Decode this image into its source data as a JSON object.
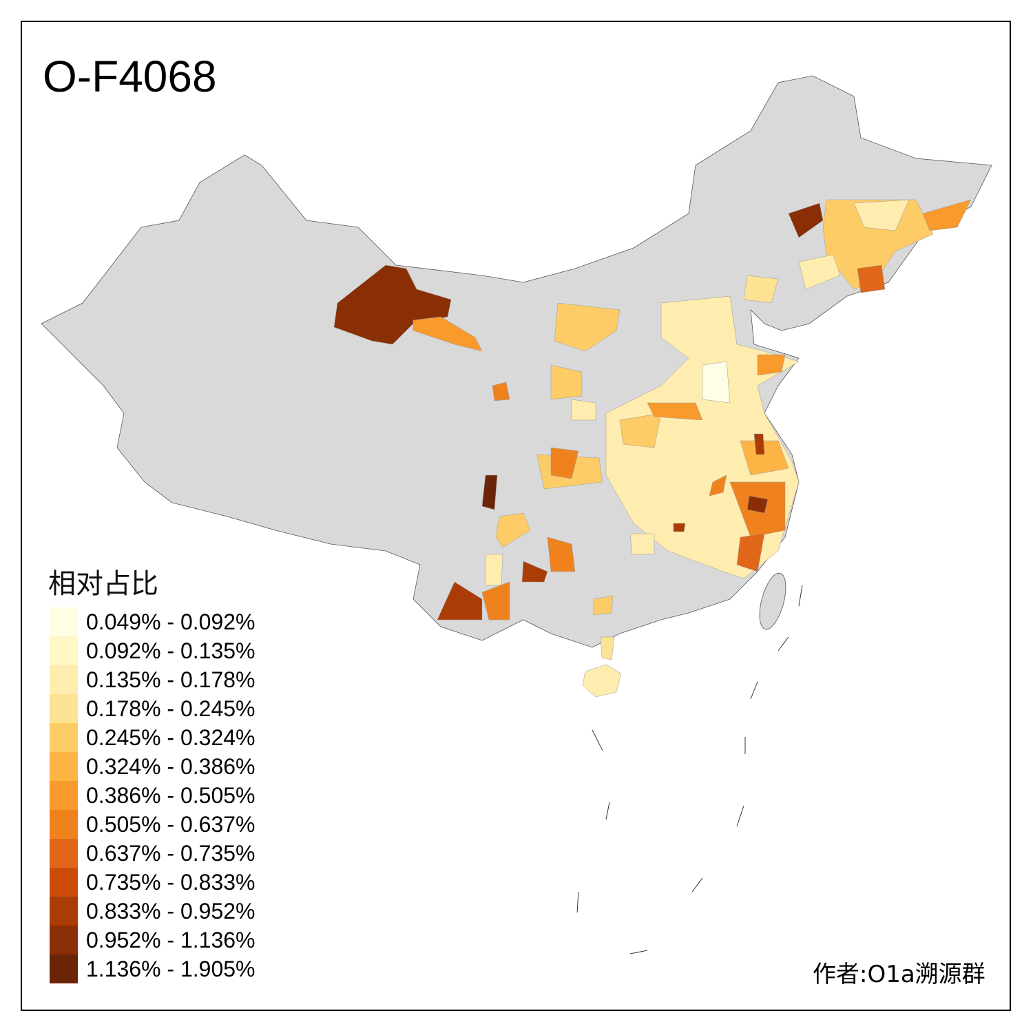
{
  "title": "O-F4068",
  "legend": {
    "title": "相对占比",
    "bins": [
      {
        "label": "0.049% - 0.092%",
        "color": "#FFFEE4"
      },
      {
        "label": "0.092% - 0.135%",
        "color": "#FFF7C6"
      },
      {
        "label": "0.135% - 0.178%",
        "color": "#FEEDAE"
      },
      {
        "label": "0.178% - 0.245%",
        "color": "#FEE294"
      },
      {
        "label": "0.245% - 0.324%",
        "color": "#FECC66"
      },
      {
        "label": "0.324% - 0.386%",
        "color": "#FDB444"
      },
      {
        "label": "0.386% - 0.505%",
        "color": "#F99A2C"
      },
      {
        "label": "0.505% - 0.637%",
        "color": "#F0821E"
      },
      {
        "label": "0.637% - 0.735%",
        "color": "#E0661A"
      },
      {
        "label": "0.735% - 0.833%",
        "color": "#CC4C06"
      },
      {
        "label": "0.833% - 0.952%",
        "color": "#AB3C05"
      },
      {
        "label": "0.952% - 1.136%",
        "color": "#8A2F05"
      },
      {
        "label": "1.136% - 1.905%",
        "color": "#6A2508"
      }
    ]
  },
  "no_data_color": "#D9D9D9",
  "credit": "作者:O1a溯源群"
}
